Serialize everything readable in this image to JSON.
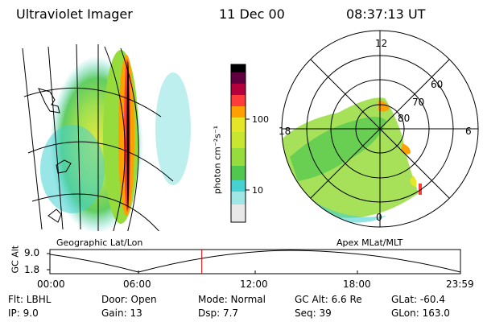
{
  "header": {
    "instrument": "Ultraviolet Imager",
    "date": "11 Dec 00",
    "time": "08:37:13 UT"
  },
  "colorbar": {
    "unit_label": "photon cm⁻²s⁻¹",
    "ticks": [
      "100",
      "10"
    ],
    "scale": "log",
    "colors": [
      "#ffffff",
      "#c8c8c8",
      "#46d2d2",
      "#50c850",
      "#96dc3c",
      "#e6e628",
      "#ffa000",
      "#ff3c3c",
      "#b4003c",
      "#600040",
      "#000000"
    ]
  },
  "left_panel": {
    "label": "Geographic Lat/Lon"
  },
  "right_panel": {
    "label": "Apex MLat/MLT",
    "mlt_labels": {
      "top": "12",
      "left": "18",
      "right": "6",
      "bottom": "0"
    },
    "lat_labels": [
      "60",
      "70",
      "80"
    ]
  },
  "altitude_plot": {
    "axis_label": "GC Alt",
    "y_ticks": [
      "9.0",
      "1.8"
    ],
    "x_ticks": [
      "00:00",
      "06:00",
      "12:00",
      "18:00",
      "23:59"
    ],
    "current_marker_fraction": 0.37,
    "marker_color": "#cc0000"
  },
  "status": {
    "flt": "Flt: LBHL",
    "ip": "IP:  9.0",
    "door": "Door: Open",
    "gain": "Gain: 13",
    "mode": "Mode: Normal",
    "dsp": "Dsp:     7.7",
    "gc_alt": "GC Alt: 6.6 Re",
    "seq": "Seq: 39",
    "glat": "GLat: -60.4",
    "glon": "GLon: 163.0"
  }
}
